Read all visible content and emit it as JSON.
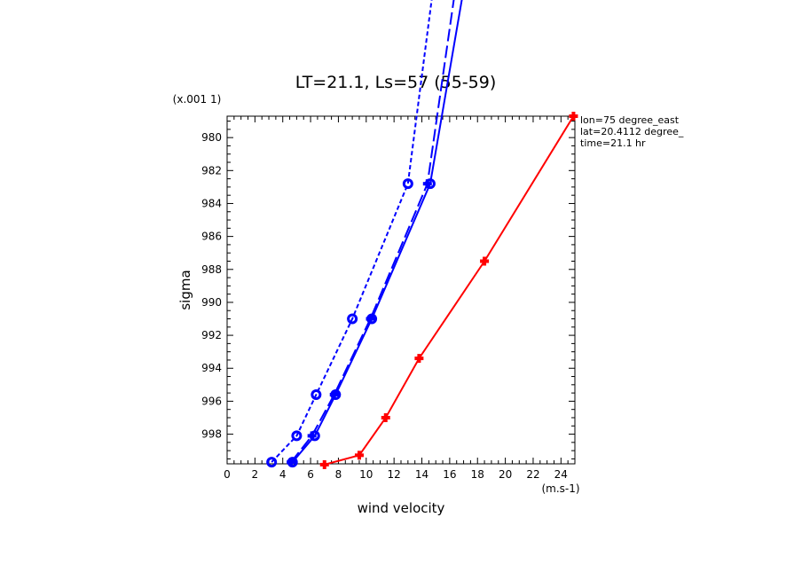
{
  "chart_data": {
    "type": "line",
    "title": "LT=21.1, Ls=57 (55-59)",
    "xlabel": "wind velocity",
    "ylabel": "sigma",
    "x_unit": "(m.s-1)",
    "y_unit": "(x.001 1)",
    "xlim": [
      0,
      25
    ],
    "ylim": [
      999.8,
      978.7
    ],
    "y_inverted": true,
    "grid": false,
    "x_ticks": [
      0,
      2,
      4,
      6,
      8,
      10,
      12,
      14,
      16,
      18,
      20,
      22,
      24
    ],
    "y_ticks": [
      980,
      982,
      984,
      986,
      988,
      990,
      992,
      994,
      996,
      998
    ],
    "annotations": [
      "lon=75 degree_east",
      "lat=20.4112 degree_",
      "time=21.1 hr"
    ],
    "series": [
      {
        "color": "#ff0000",
        "dash": "solid",
        "marker": "plus",
        "points": [
          [
            7.0,
            999.85
          ],
          [
            9.5,
            999.28
          ],
          [
            11.4,
            997.0
          ],
          [
            13.8,
            993.4
          ],
          [
            18.5,
            987.5
          ],
          [
            24.9,
            978.7
          ]
        ]
      },
      {
        "color": "#0000ff",
        "dash": "solid",
        "marker": "circle",
        "points": [
          [
            4.7,
            999.7
          ],
          [
            6.3,
            998.1
          ],
          [
            7.8,
            995.6
          ],
          [
            10.4,
            991.0
          ],
          [
            14.6,
            982.8
          ],
          [
            17.0,
            971.0
          ]
        ]
      },
      {
        "color": "#0000ff",
        "dash": "longdash",
        "marker": "plus",
        "points": [
          [
            4.6,
            999.7
          ],
          [
            6.1,
            998.1
          ],
          [
            7.7,
            995.6
          ],
          [
            10.3,
            991.0
          ],
          [
            14.4,
            982.8
          ],
          [
            16.4,
            971.0
          ]
        ]
      },
      {
        "color": "#0000ff",
        "dash": "shortdash",
        "marker": "circle",
        "points": [
          [
            3.2,
            999.7
          ],
          [
            5.0,
            998.1
          ],
          [
            6.4,
            995.6
          ],
          [
            9.0,
            991.0
          ],
          [
            13.0,
            982.8
          ],
          [
            14.8,
            971.0
          ]
        ]
      }
    ]
  }
}
